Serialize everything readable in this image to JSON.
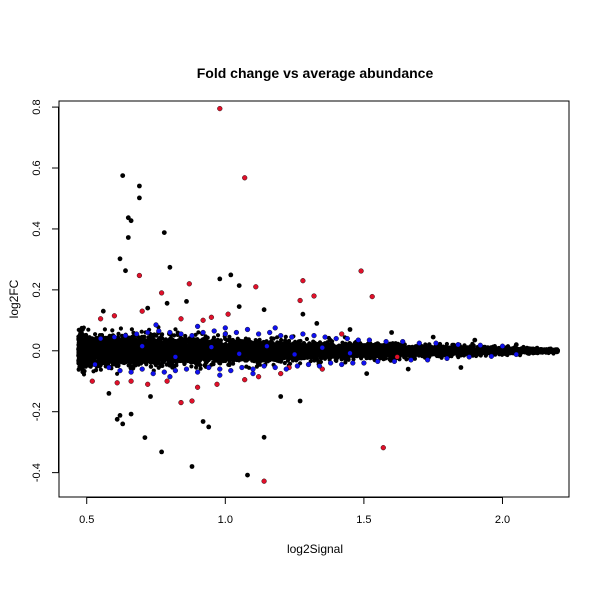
{
  "chart_data": {
    "type": "scatter",
    "title": "Fold change vs average abundance",
    "xlabel": "log2Signal",
    "ylabel": "log2FC",
    "xlim": [
      0.4,
      2.24
    ],
    "ylim": [
      -0.48,
      0.82
    ],
    "x_ticks": [
      0.5,
      1.0,
      1.5,
      2.0
    ],
    "x_tick_labels": [
      "0.5",
      "1.0",
      "1.5",
      "2.0"
    ],
    "y_ticks": [
      -0.4,
      -0.2,
      0.0,
      0.2,
      0.4,
      0.6,
      0.8
    ],
    "y_tick_labels": [
      "-0.4",
      "-0.2",
      "0.0",
      "0.2",
      "0.4",
      "0.6",
      "0.8"
    ],
    "grid": false,
    "legend": "none",
    "colors": {
      "black": "#000000",
      "blue": "#1010ee",
      "red": "#e0102a"
    },
    "series": [
      {
        "color": "#000000",
        "points": [
          [
            0.63,
            0.575
          ],
          [
            0.69,
            0.541
          ],
          [
            0.69,
            0.502
          ],
          [
            0.65,
            0.437
          ],
          [
            0.66,
            0.427
          ],
          [
            0.65,
            0.372
          ],
          [
            0.78,
            0.388
          ],
          [
            0.62,
            0.302
          ],
          [
            0.64,
            0.263
          ],
          [
            0.8,
            0.274
          ],
          [
            1.02,
            0.249
          ],
          [
            1.05,
            0.214
          ],
          [
            0.98,
            0.236
          ],
          [
            0.62,
            -0.212
          ],
          [
            0.63,
            -0.24
          ],
          [
            0.61,
            -0.225
          ],
          [
            0.66,
            -0.208
          ],
          [
            0.71,
            -0.285
          ],
          [
            0.77,
            -0.332
          ],
          [
            0.92,
            -0.232
          ],
          [
            0.94,
            -0.25
          ],
          [
            0.88,
            -0.38
          ],
          [
            1.08,
            -0.408
          ],
          [
            1.14,
            -0.284
          ],
          [
            1.27,
            -0.165
          ],
          [
            1.2,
            -0.15
          ],
          [
            0.84,
            -0.17
          ],
          [
            0.79,
            0.156
          ],
          [
            0.86,
            0.162
          ],
          [
            1.05,
            0.145
          ],
          [
            1.14,
            0.135
          ],
          [
            1.28,
            0.12
          ],
          [
            1.33,
            0.09
          ],
          [
            1.45,
            0.07
          ],
          [
            1.6,
            0.06
          ],
          [
            1.75,
            0.045
          ],
          [
            1.9,
            0.035
          ],
          [
            2.05,
            0.02
          ],
          [
            2.17,
            0.005
          ],
          [
            2.19,
            -0.002
          ],
          [
            1.85,
            -0.055
          ],
          [
            1.66,
            -0.06
          ],
          [
            1.51,
            -0.075
          ],
          [
            0.58,
            -0.14
          ],
          [
            0.73,
            -0.15
          ],
          [
            0.56,
            0.13
          ],
          [
            0.72,
            0.14
          ]
        ]
      },
      {
        "color": "#e0102a",
        "points": [
          [
            0.98,
            0.795
          ],
          [
            1.07,
            0.568
          ],
          [
            1.49,
            0.262
          ],
          [
            1.28,
            0.23
          ],
          [
            1.32,
            0.18
          ],
          [
            1.53,
            0.178
          ],
          [
            1.27,
            0.165
          ],
          [
            0.69,
            0.247
          ],
          [
            0.77,
            0.19
          ],
          [
            1.11,
            0.21
          ],
          [
            0.87,
            0.22
          ],
          [
            1.57,
            -0.318
          ],
          [
            1.14,
            -0.428
          ],
          [
            0.55,
            0.105
          ],
          [
            0.6,
            0.115
          ],
          [
            0.84,
            0.105
          ],
          [
            0.92,
            0.1
          ],
          [
            0.52,
            -0.1
          ],
          [
            0.61,
            -0.105
          ],
          [
            0.66,
            -0.1
          ],
          [
            0.72,
            -0.11
          ],
          [
            0.79,
            -0.1
          ],
          [
            0.84,
            -0.17
          ],
          [
            0.88,
            -0.165
          ],
          [
            0.9,
            -0.12
          ],
          [
            0.97,
            -0.11
          ],
          [
            1.07,
            -0.095
          ],
          [
            1.12,
            -0.085
          ],
          [
            1.2,
            -0.075
          ],
          [
            1.23,
            -0.055
          ],
          [
            1.35,
            -0.06
          ],
          [
            1.42,
            0.055
          ],
          [
            1.62,
            -0.02
          ],
          [
            0.7,
            0.13
          ],
          [
            0.95,
            0.11
          ],
          [
            1.01,
            0.12
          ]
        ]
      },
      {
        "color": "#1010ee",
        "points": [
          [
            0.53,
            -0.045
          ],
          [
            0.55,
            0.04
          ],
          [
            0.58,
            -0.055
          ],
          [
            0.6,
            0.045
          ],
          [
            0.62,
            -0.065
          ],
          [
            0.64,
            0.05
          ],
          [
            0.66,
            -0.07
          ],
          [
            0.68,
            0.055
          ],
          [
            0.7,
            -0.06
          ],
          [
            0.72,
            0.06
          ],
          [
            0.74,
            -0.075
          ],
          [
            0.76,
            0.065
          ],
          [
            0.78,
            -0.07
          ],
          [
            0.8,
            0.06
          ],
          [
            0.82,
            -0.065
          ],
          [
            0.84,
            0.055
          ],
          [
            0.86,
            -0.06
          ],
          [
            0.88,
            0.05
          ],
          [
            0.9,
            -0.07
          ],
          [
            0.92,
            0.06
          ],
          [
            0.94,
            -0.055
          ],
          [
            0.96,
            0.065
          ],
          [
            0.98,
            -0.06
          ],
          [
            1.0,
            0.055
          ],
          [
            1.02,
            -0.065
          ],
          [
            1.04,
            0.06
          ],
          [
            1.06,
            -0.055
          ],
          [
            1.08,
            0.07
          ],
          [
            1.1,
            -0.06
          ],
          [
            1.12,
            0.055
          ],
          [
            1.14,
            -0.05
          ],
          [
            1.16,
            0.06
          ],
          [
            1.18,
            -0.055
          ],
          [
            1.2,
            0.05
          ],
          [
            1.22,
            -0.06
          ],
          [
            1.24,
            0.045
          ],
          [
            1.26,
            -0.05
          ],
          [
            1.28,
            0.055
          ],
          [
            1.3,
            -0.045
          ],
          [
            1.32,
            0.05
          ],
          [
            1.34,
            -0.05
          ],
          [
            1.36,
            0.045
          ],
          [
            1.38,
            -0.04
          ],
          [
            1.4,
            0.04
          ],
          [
            1.42,
            -0.045
          ],
          [
            1.44,
            0.04
          ],
          [
            1.46,
            -0.04
          ],
          [
            1.48,
            0.035
          ],
          [
            1.5,
            -0.04
          ],
          [
            1.52,
            0.035
          ],
          [
            1.55,
            -0.035
          ],
          [
            1.58,
            0.03
          ],
          [
            1.61,
            -0.035
          ],
          [
            1.64,
            0.03
          ],
          [
            1.67,
            -0.03
          ],
          [
            1.7,
            0.025
          ],
          [
            1.73,
            -0.03
          ],
          [
            1.76,
            0.025
          ],
          [
            1.8,
            -0.025
          ],
          [
            1.84,
            0.02
          ],
          [
            1.88,
            -0.02
          ],
          [
            1.92,
            0.018
          ],
          [
            1.96,
            -0.018
          ],
          [
            2.0,
            0.015
          ],
          [
            2.05,
            -0.012
          ],
          [
            0.7,
            0.015
          ],
          [
            0.82,
            -0.02
          ],
          [
            0.95,
            0.012
          ],
          [
            1.05,
            -0.01
          ],
          [
            1.15,
            0.015
          ],
          [
            1.25,
            -0.012
          ],
          [
            1.35,
            0.01
          ],
          [
            1.45,
            -0.008
          ],
          [
            0.75,
            0.085
          ],
          [
            0.9,
            0.08
          ],
          [
            1.0,
            0.075
          ],
          [
            1.18,
            0.075
          ],
          [
            0.8,
            -0.085
          ],
          [
            0.98,
            -0.08
          ],
          [
            1.1,
            -0.075
          ]
        ]
      }
    ]
  }
}
